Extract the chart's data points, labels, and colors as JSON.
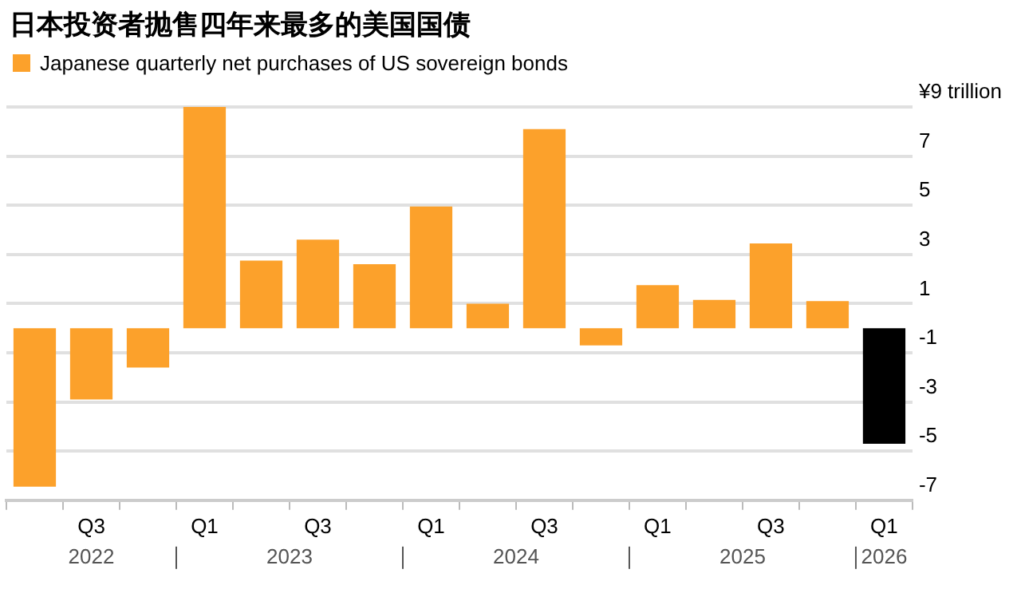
{
  "chart_data": {
    "type": "bar",
    "title": "日本投资者抛售四年来最多的美国国债",
    "categories": [
      null,
      "Q3",
      null,
      "Q1",
      null,
      "Q3",
      null,
      "Q1",
      null,
      "Q3",
      null,
      "Q1",
      null,
      "Q3",
      null,
      "Q1"
    ],
    "series": [
      {
        "name": "Japanese quarterly net purchases of US sovereign bonds",
        "color": "#fca12b",
        "values": [
          -6.45,
          -2.9,
          -1.6,
          9.0,
          2.75,
          3.6,
          2.6,
          4.95,
          1.0,
          8.1,
          -0.7,
          1.75,
          1.15,
          3.45,
          1.1,
          null
        ]
      },
      {
        "color": "#000000",
        "values": [
          null,
          null,
          null,
          null,
          null,
          null,
          null,
          null,
          null,
          null,
          null,
          null,
          null,
          null,
          null,
          -4.7
        ]
      }
    ],
    "ylim": [
      -7,
      9
    ],
    "yticks": [
      {
        "value": 9,
        "label": "¥9 trillion"
      },
      7,
      5,
      3,
      1,
      -1,
      -3,
      -5,
      -7
    ],
    "grid": "y",
    "legend": "top left",
    "annotations": [
      "2022",
      "2023",
      "2024",
      "2025",
      "2026"
    ]
  }
}
